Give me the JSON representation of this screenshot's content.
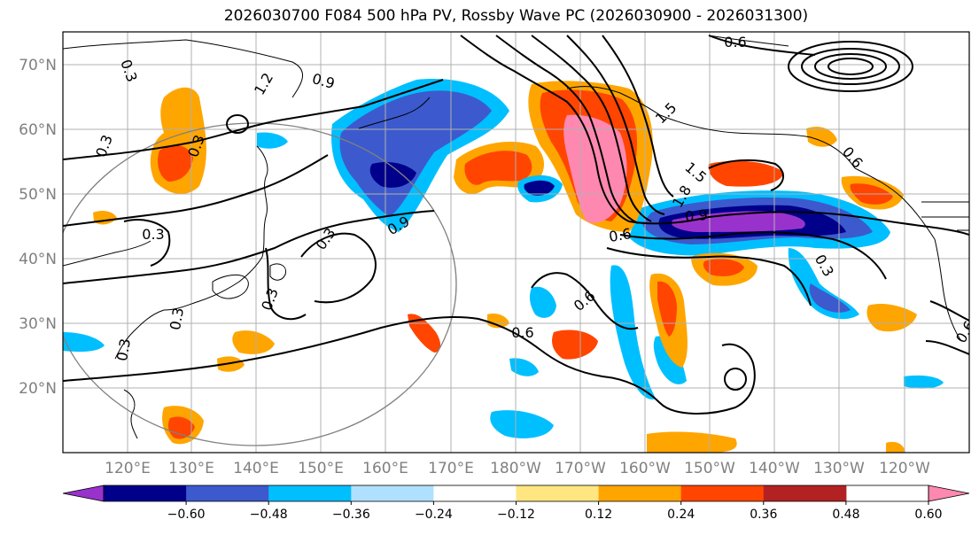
{
  "title": "2026030700 F084 500 hPa PV, Rossby Wave PC (2026030900 - 2026031300)",
  "lat_labels": [
    "70°N",
    "60°N",
    "50°N",
    "40°N",
    "30°N",
    "20°N"
  ],
  "lon_labels": [
    "120°E",
    "130°E",
    "140°E",
    "150°E",
    "160°E",
    "170°E",
    "180°W",
    "170°W",
    "160°W",
    "150°W",
    "140°W",
    "130°W",
    "120°W"
  ],
  "colorbar": {
    "tick_labels": [
      "−0.60",
      "−0.48",
      "−0.36",
      "−0.24",
      "−0.12",
      "0.12",
      "0.24",
      "0.36",
      "0.48",
      "0.60"
    ],
    "colors": [
      "#9932cc",
      "#00008b",
      "#3c5acd",
      "#00bfff",
      "#b0e0ff",
      "#ffffff",
      "#ffe680",
      "#ffa500",
      "#ff4500",
      "#b22222",
      "#ff88b0"
    ]
  },
  "contour_labels": [
    "0.3",
    "1.2",
    "0.9",
    "0.3",
    "0.3",
    "0.3",
    "0.3",
    "0.3",
    "0.3",
    "0.3",
    "0.6",
    "1.5",
    "1.5",
    "1.8",
    "0.9",
    "0.6",
    "0.6",
    "0.6",
    "0.3",
    "0.6",
    "0.9",
    "0.6"
  ]
}
